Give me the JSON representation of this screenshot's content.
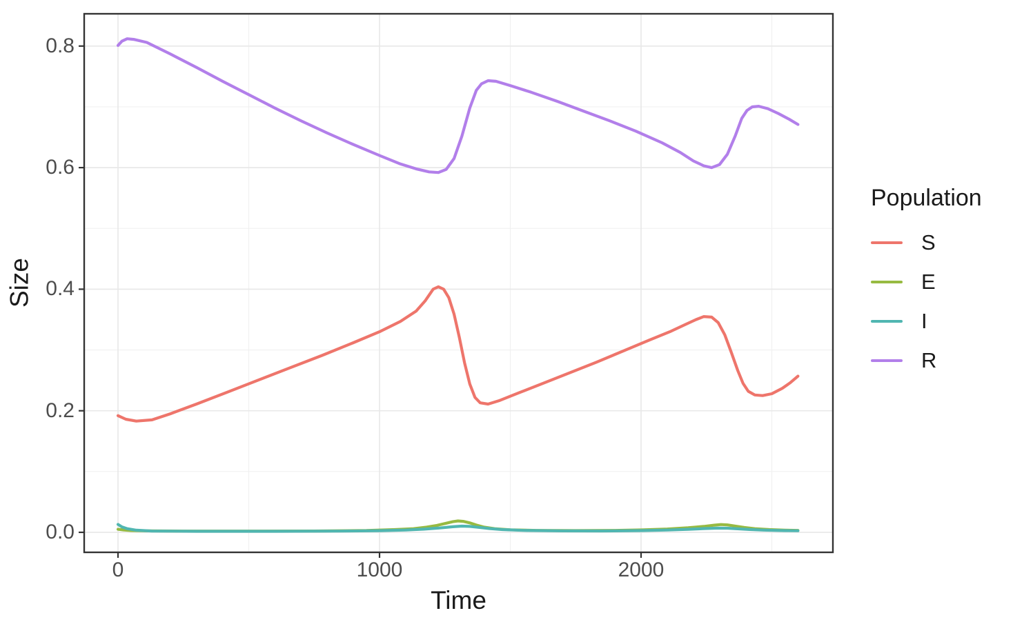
{
  "styles": {
    "background": "#FFFFFF",
    "panel_border_color": "#333333",
    "grid_major_color": "#E8E8E8",
    "grid_minor_color": "#F0F0F0",
    "tick_mark_color": "#333333",
    "tick_label_color": "#4D4D4D",
    "axis_title_color": "#1A1A1A"
  },
  "legend": {
    "title": "Population",
    "items": [
      {
        "label": "S",
        "color": "#EE756B"
      },
      {
        "label": "E",
        "color": "#97BA41"
      },
      {
        "label": "I",
        "color": "#50B6B1"
      },
      {
        "label": "R",
        "color": "#B27FEA"
      }
    ]
  },
  "chart_data": {
    "type": "line",
    "title": "",
    "xlabel": "Time",
    "ylabel": "Size",
    "xlim": [
      -129,
      2733
    ],
    "ylim": [
      -0.033,
      0.853
    ],
    "grid": true,
    "legend_position": "right",
    "x_ticks": {
      "major": [
        0,
        1000,
        2000
      ],
      "labels": [
        "0",
        "1000",
        "2000"
      ],
      "minor": [
        500,
        1500,
        2500
      ]
    },
    "y_ticks": {
      "major": [
        0.0,
        0.2,
        0.4,
        0.6,
        0.8
      ],
      "labels": [
        "0.0",
        "0.2",
        "0.4",
        "0.6",
        "0.8"
      ],
      "minor": [
        0.1,
        0.3,
        0.5,
        0.7
      ]
    },
    "series": [
      {
        "name": "S",
        "color": "#EE756B",
        "points": [
          [
            0,
            0.192
          ],
          [
            30,
            0.186
          ],
          [
            70,
            0.183
          ],
          [
            130,
            0.185
          ],
          [
            200,
            0.195
          ],
          [
            300,
            0.211
          ],
          [
            420,
            0.231
          ],
          [
            540,
            0.251
          ],
          [
            660,
            0.271
          ],
          [
            780,
            0.291
          ],
          [
            900,
            0.312
          ],
          [
            1000,
            0.33
          ],
          [
            1080,
            0.347
          ],
          [
            1140,
            0.364
          ],
          [
            1175,
            0.381
          ],
          [
            1205,
            0.4
          ],
          [
            1225,
            0.404
          ],
          [
            1245,
            0.4
          ],
          [
            1265,
            0.386
          ],
          [
            1285,
            0.359
          ],
          [
            1305,
            0.321
          ],
          [
            1325,
            0.279
          ],
          [
            1345,
            0.244
          ],
          [
            1365,
            0.222
          ],
          [
            1385,
            0.213
          ],
          [
            1415,
            0.211
          ],
          [
            1460,
            0.217
          ],
          [
            1530,
            0.229
          ],
          [
            1630,
            0.246
          ],
          [
            1730,
            0.263
          ],
          [
            1830,
            0.28
          ],
          [
            1930,
            0.298
          ],
          [
            2030,
            0.316
          ],
          [
            2110,
            0.33
          ],
          [
            2170,
            0.342
          ],
          [
            2210,
            0.35
          ],
          [
            2240,
            0.355
          ],
          [
            2270,
            0.354
          ],
          [
            2295,
            0.345
          ],
          [
            2320,
            0.325
          ],
          [
            2345,
            0.296
          ],
          [
            2370,
            0.266
          ],
          [
            2390,
            0.245
          ],
          [
            2410,
            0.232
          ],
          [
            2435,
            0.226
          ],
          [
            2465,
            0.225
          ],
          [
            2500,
            0.228
          ],
          [
            2540,
            0.237
          ],
          [
            2570,
            0.246
          ],
          [
            2600,
            0.257
          ]
        ]
      },
      {
        "name": "E",
        "color": "#97BA41",
        "points": [
          [
            0,
            0.005
          ],
          [
            20,
            0.004
          ],
          [
            50,
            0.003
          ],
          [
            100,
            0.0025
          ],
          [
            250,
            0.002
          ],
          [
            500,
            0.002
          ],
          [
            750,
            0.0022
          ],
          [
            950,
            0.003
          ],
          [
            1060,
            0.0045
          ],
          [
            1130,
            0.006
          ],
          [
            1180,
            0.0085
          ],
          [
            1220,
            0.0115
          ],
          [
            1255,
            0.015
          ],
          [
            1280,
            0.0175
          ],
          [
            1300,
            0.0187
          ],
          [
            1320,
            0.018
          ],
          [
            1345,
            0.0155
          ],
          [
            1370,
            0.012
          ],
          [
            1400,
            0.0085
          ],
          [
            1440,
            0.006
          ],
          [
            1500,
            0.0042
          ],
          [
            1600,
            0.0032
          ],
          [
            1750,
            0.0028
          ],
          [
            1900,
            0.0032
          ],
          [
            2000,
            0.004
          ],
          [
            2100,
            0.0055
          ],
          [
            2180,
            0.0075
          ],
          [
            2240,
            0.0098
          ],
          [
            2280,
            0.0118
          ],
          [
            2305,
            0.0128
          ],
          [
            2330,
            0.0122
          ],
          [
            2360,
            0.0103
          ],
          [
            2395,
            0.008
          ],
          [
            2435,
            0.006
          ],
          [
            2490,
            0.0045
          ],
          [
            2550,
            0.0036
          ],
          [
            2600,
            0.0032
          ]
        ]
      },
      {
        "name": "I",
        "color": "#50B6B1",
        "points": [
          [
            0,
            0.013
          ],
          [
            15,
            0.009
          ],
          [
            35,
            0.006
          ],
          [
            70,
            0.0035
          ],
          [
            130,
            0.0022
          ],
          [
            300,
            0.0017
          ],
          [
            600,
            0.0017
          ],
          [
            850,
            0.002
          ],
          [
            1000,
            0.0027
          ],
          [
            1100,
            0.0038
          ],
          [
            1170,
            0.0052
          ],
          [
            1230,
            0.0072
          ],
          [
            1280,
            0.0092
          ],
          [
            1315,
            0.0102
          ],
          [
            1345,
            0.0098
          ],
          [
            1380,
            0.0082
          ],
          [
            1420,
            0.0062
          ],
          [
            1470,
            0.0045
          ],
          [
            1550,
            0.0032
          ],
          [
            1700,
            0.0024
          ],
          [
            1850,
            0.0023
          ],
          [
            2000,
            0.0028
          ],
          [
            2100,
            0.0038
          ],
          [
            2180,
            0.005
          ],
          [
            2245,
            0.0062
          ],
          [
            2295,
            0.0069
          ],
          [
            2330,
            0.0068
          ],
          [
            2370,
            0.0058
          ],
          [
            2415,
            0.0046
          ],
          [
            2470,
            0.0036
          ],
          [
            2550,
            0.0028
          ],
          [
            2600,
            0.0026
          ]
        ]
      },
      {
        "name": "R",
        "color": "#B27FEA",
        "points": [
          [
            0,
            0.801
          ],
          [
            15,
            0.808
          ],
          [
            35,
            0.812
          ],
          [
            60,
            0.811
          ],
          [
            110,
            0.806
          ],
          [
            200,
            0.787
          ],
          [
            300,
            0.765
          ],
          [
            400,
            0.742
          ],
          [
            500,
            0.72
          ],
          [
            600,
            0.698
          ],
          [
            700,
            0.677
          ],
          [
            800,
            0.657
          ],
          [
            900,
            0.638
          ],
          [
            1000,
            0.62
          ],
          [
            1080,
            0.606
          ],
          [
            1140,
            0.598
          ],
          [
            1190,
            0.593
          ],
          [
            1225,
            0.592
          ],
          [
            1255,
            0.597
          ],
          [
            1285,
            0.615
          ],
          [
            1315,
            0.652
          ],
          [
            1345,
            0.698
          ],
          [
            1370,
            0.727
          ],
          [
            1390,
            0.738
          ],
          [
            1415,
            0.743
          ],
          [
            1445,
            0.742
          ],
          [
            1500,
            0.735
          ],
          [
            1580,
            0.724
          ],
          [
            1680,
            0.709
          ],
          [
            1780,
            0.693
          ],
          [
            1880,
            0.677
          ],
          [
            1980,
            0.66
          ],
          [
            2080,
            0.641
          ],
          [
            2150,
            0.625
          ],
          [
            2200,
            0.611
          ],
          [
            2240,
            0.603
          ],
          [
            2270,
            0.6
          ],
          [
            2300,
            0.605
          ],
          [
            2330,
            0.622
          ],
          [
            2360,
            0.652
          ],
          [
            2385,
            0.681
          ],
          [
            2405,
            0.694
          ],
          [
            2425,
            0.7
          ],
          [
            2450,
            0.701
          ],
          [
            2485,
            0.697
          ],
          [
            2525,
            0.689
          ],
          [
            2565,
            0.68
          ],
          [
            2600,
            0.671
          ]
        ]
      }
    ]
  }
}
